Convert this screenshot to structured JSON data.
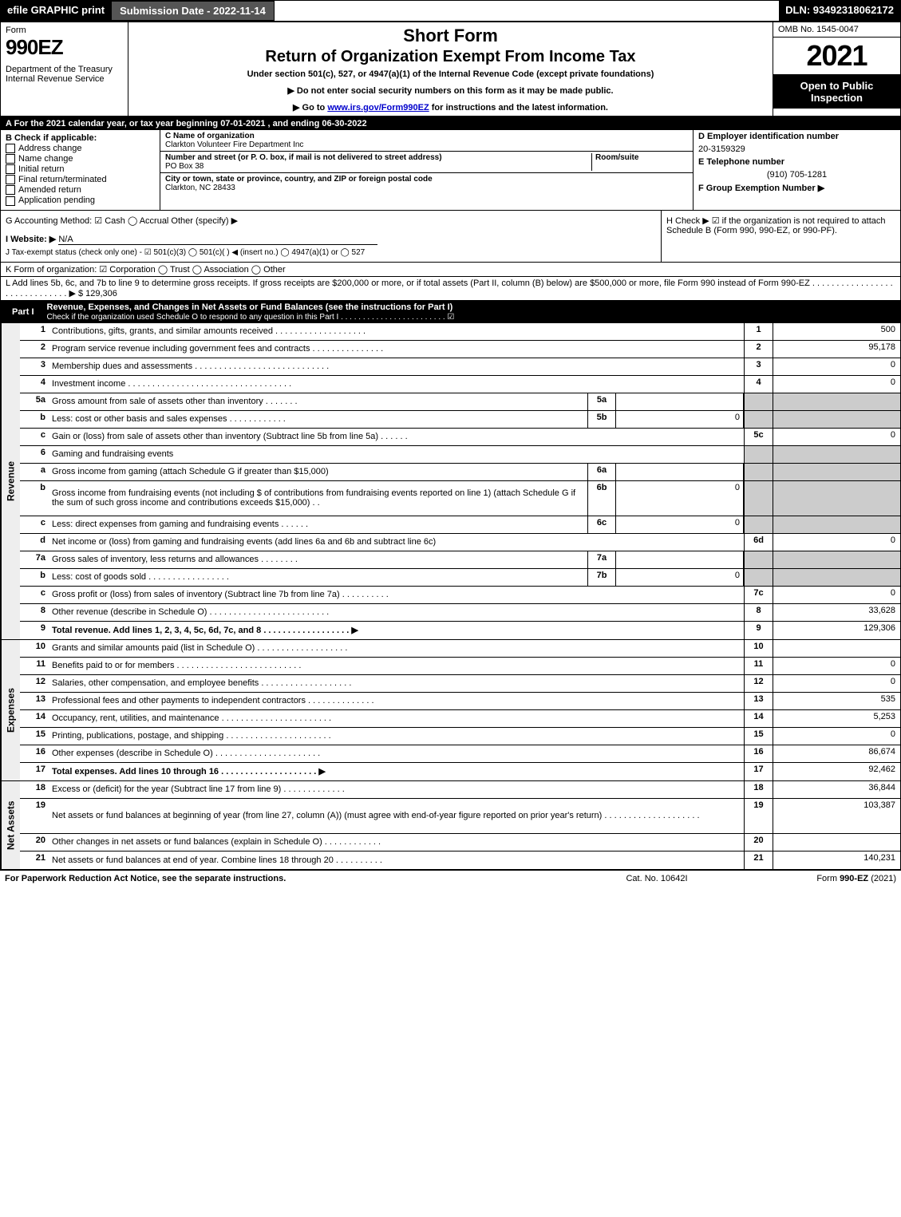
{
  "topbar": {
    "efile": "efile GRAPHIC print",
    "subdate": "Submission Date - 2022-11-14",
    "dln": "DLN: 93492318062172"
  },
  "header": {
    "form_label": "Form",
    "form_no": "990EZ",
    "dept": "Department of the Treasury\nInternal Revenue Service",
    "short": "Short Form",
    "return": "Return of Organization Exempt From Income Tax",
    "under": "Under section 501(c), 527, or 4947(a)(1) of the Internal Revenue Code (except private foundations)",
    "note1": "▶ Do not enter social security numbers on this form as it may be made public.",
    "note2_pre": "▶ Go to ",
    "note2_link": "www.irs.gov/Form990EZ",
    "note2_post": " for instructions and the latest information.",
    "omb": "OMB No. 1545-0047",
    "year": "2021",
    "open": "Open to Public Inspection"
  },
  "row_a": "A  For the 2021 calendar year, or tax year beginning 07-01-2021 , and ending 06-30-2022",
  "section_b": {
    "b_label": "B  Check if applicable:",
    "checks": [
      {
        "label": "Address change",
        "checked": false
      },
      {
        "label": "Name change",
        "checked": false
      },
      {
        "label": "Initial return",
        "checked": false
      },
      {
        "label": "Final return/terminated",
        "checked": false
      },
      {
        "label": "Amended return",
        "checked": false
      },
      {
        "label": "Application pending",
        "checked": false
      }
    ],
    "c_label": "C Name of organization",
    "c_name": "Clarkton Volunteer Fire Department Inc",
    "addr_label": "Number and street (or P. O. box, if mail is not delivered to street address)",
    "addr": "PO Box 38",
    "room_label": "Room/suite",
    "city_label": "City or town, state or province, country, and ZIP or foreign postal code",
    "city": "Clarkton, NC  28433",
    "d_label": "D Employer identification number",
    "d_val": "20-3159329",
    "e_label": "E Telephone number",
    "e_val": "(910) 705-1281",
    "f_label": "F Group Exemption Number  ▶"
  },
  "ghi": {
    "g": "G Accounting Method:   ☑ Cash   ◯ Accrual   Other (specify) ▶",
    "i_label": "I Website: ▶",
    "i_val": "N/A",
    "j": "J Tax-exempt status (check only one) - ☑ 501(c)(3)  ◯ 501(c)(  ) ◀ (insert no.)  ◯ 4947(a)(1) or  ◯ 527",
    "h": "H  Check ▶ ☑ if the organization is not required to attach Schedule B (Form 990, 990-EZ, or 990-PF)."
  },
  "k": "K Form of organization:  ☑ Corporation   ◯ Trust   ◯ Association   ◯ Other",
  "l": {
    "text": "L Add lines 5b, 6c, and 7b to line 9 to determine gross receipts. If gross receipts are $200,000 or more, or if total assets (Part II, column (B) below) are $500,000 or more, file Form 990 instead of Form 990-EZ .  .  .  .  .  .  .  .  .  .  .  .  .  .  .  .  .  .  .  .  .  .  .  .  .  .  .  .  .  .  ▶ $",
    "val": " 129,306"
  },
  "part1": {
    "title": "Part I",
    "heading": "Revenue, Expenses, and Changes in Net Assets or Fund Balances (see the instructions for Part I)",
    "sub": "Check if the organization used Schedule O to respond to any question in this Part I . . . . . . . . . . . . . . . . . . . . . . . . ☑"
  },
  "revenue_label": "Revenue",
  "expenses_label": "Expenses",
  "netassets_label": "Net Assets",
  "revenue_rows": [
    {
      "n": "1",
      "d": "Contributions, gifts, grants, and similar amounts received .  .  .  .  .  .  .  .  .  .  .  .  .  .  .  .  .  .  .",
      "ln": "1",
      "val": "500"
    },
    {
      "n": "2",
      "d": "Program service revenue including government fees and contracts .  .  .  .  .  .  .  .  .  .  .  .  .  .  .",
      "ln": "2",
      "val": "95,178"
    },
    {
      "n": "3",
      "d": "Membership dues and assessments .  .  .  .  .  .  .  .  .  .  .  .  .  .  .  .  .  .  .  .  .  .  .  .  .  .  .  .",
      "ln": "3",
      "val": "0"
    },
    {
      "n": "4",
      "d": "Investment income .  .  .  .  .  .  .  .  .  .  .  .  .  .  .  .  .  .  .  .  .  .  .  .  .  .  .  .  .  .  .  .  .  .",
      "ln": "4",
      "val": "0"
    },
    {
      "n": "5a",
      "d": "Gross amount from sale of assets other than inventory .  .  .  .  .  .  .",
      "subn": "5a",
      "subv": "",
      "ln": "",
      "val": "",
      "lnshade": true,
      "valshade": true
    },
    {
      "n": "b",
      "d": "Less: cost or other basis and sales expenses .  .  .  .  .  .  .  .  .  .  .  .",
      "subn": "5b",
      "subv": "0",
      "ln": "",
      "val": "",
      "lnshade": true,
      "valshade": true
    },
    {
      "n": "c",
      "d": "Gain or (loss) from sale of assets other than inventory (Subtract line 5b from line 5a) .  .  .  .  .  .",
      "ln": "5c",
      "val": "0"
    },
    {
      "n": "6",
      "d": "Gaming and fundraising events",
      "ln": "",
      "val": "",
      "lnshade": true,
      "valshade": true
    },
    {
      "n": "a",
      "d": "Gross income from gaming (attach Schedule G if greater than $15,000)",
      "subn": "6a",
      "subv": "",
      "ln": "",
      "val": "",
      "lnshade": true,
      "valshade": true
    },
    {
      "n": "b",
      "d": "Gross income from fundraising events (not including $                 of contributions from fundraising events reported on line 1) (attach Schedule G if the sum of such gross income and contributions exceeds $15,000)  .  .",
      "subn": "6b",
      "subv": "0",
      "ln": "",
      "val": "",
      "lnshade": true,
      "valshade": true,
      "tall": true
    },
    {
      "n": "c",
      "d": "Less: direct expenses from gaming and fundraising events .  .  .  .  .  .",
      "subn": "6c",
      "subv": "0",
      "ln": "",
      "val": "",
      "lnshade": true,
      "valshade": true
    },
    {
      "n": "d",
      "d": "Net income or (loss) from gaming and fundraising events (add lines 6a and 6b and subtract line 6c)",
      "ln": "6d",
      "val": "0"
    },
    {
      "n": "7a",
      "d": "Gross sales of inventory, less returns and allowances .  .  .  .  .  .  .  .",
      "subn": "7a",
      "subv": "",
      "ln": "",
      "val": "",
      "lnshade": true,
      "valshade": true
    },
    {
      "n": "b",
      "d": "Less: cost of goods sold    .  .  .  .  .  .  .  .  .  .  .  .  .  .  .  .  .",
      "subn": "7b",
      "subv": "0",
      "ln": "",
      "val": "",
      "lnshade": true,
      "valshade": true
    },
    {
      "n": "c",
      "d": "Gross profit or (loss) from sales of inventory (Subtract line 7b from line 7a) .  .  .  .  .  .  .  .  .  .",
      "ln": "7c",
      "val": "0"
    },
    {
      "n": "8",
      "d": "Other revenue (describe in Schedule O) .  .  .  .  .  .  .  .  .  .  .  .  .  .  .  .  .  .  .  .  .  .  .  .  .",
      "ln": "8",
      "val": "33,628"
    },
    {
      "n": "9",
      "d": "Total revenue. Add lines 1, 2, 3, 4, 5c, 6d, 7c, and 8  .  .  .  .  .  .  .  .  .  .  .  .  .  .  .  .  .  .  ▶",
      "ln": "9",
      "val": "129,306",
      "bold": true
    }
  ],
  "expense_rows": [
    {
      "n": "10",
      "d": "Grants and similar amounts paid (list in Schedule O) .  .  .  .  .  .  .  .  .  .  .  .  .  .  .  .  .  .  .",
      "ln": "10",
      "val": ""
    },
    {
      "n": "11",
      "d": "Benefits paid to or for members   .  .  .  .  .  .  .  .  .  .  .  .  .  .  .  .  .  .  .  .  .  .  .  .  .  .",
      "ln": "11",
      "val": "0"
    },
    {
      "n": "12",
      "d": "Salaries, other compensation, and employee benefits .  .  .  .  .  .  .  .  .  .  .  .  .  .  .  .  .  .  .",
      "ln": "12",
      "val": "0"
    },
    {
      "n": "13",
      "d": "Professional fees and other payments to independent contractors .  .  .  .  .  .  .  .  .  .  .  .  .  .",
      "ln": "13",
      "val": "535"
    },
    {
      "n": "14",
      "d": "Occupancy, rent, utilities, and maintenance .  .  .  .  .  .  .  .  .  .  .  .  .  .  .  .  .  .  .  .  .  .  .",
      "ln": "14",
      "val": "5,253"
    },
    {
      "n": "15",
      "d": "Printing, publications, postage, and shipping .  .  .  .  .  .  .  .  .  .  .  .  .  .  .  .  .  .  .  .  .  .",
      "ln": "15",
      "val": "0"
    },
    {
      "n": "16",
      "d": "Other expenses (describe in Schedule O)   .  .  .  .  .  .  .  .  .  .  .  .  .  .  .  .  .  .  .  .  .  .",
      "ln": "16",
      "val": "86,674"
    },
    {
      "n": "17",
      "d": "Total expenses. Add lines 10 through 16   .  .  .  .  .  .  .  .  .  .  .  .  .  .  .  .  .  .  .  .  ▶",
      "ln": "17",
      "val": "92,462",
      "bold": true
    }
  ],
  "net_rows": [
    {
      "n": "18",
      "d": "Excess or (deficit) for the year (Subtract line 17 from line 9)    .  .  .  .  .  .  .  .  .  .  .  .  .",
      "ln": "18",
      "val": "36,844"
    },
    {
      "n": "19",
      "d": "Net assets or fund balances at beginning of year (from line 27, column (A)) (must agree with end-of-year figure reported on prior year's return) .  .  .  .  .  .  .  .  .  .  .  .  .  .  .  .  .  .  .  .",
      "ln": "19",
      "val": "103,387",
      "tall": true
    },
    {
      "n": "20",
      "d": "Other changes in net assets or fund balances (explain in Schedule O) .  .  .  .  .  .  .  .  .  .  .  .",
      "ln": "20",
      "val": ""
    },
    {
      "n": "21",
      "d": "Net assets or fund balances at end of year. Combine lines 18 through 20 .  .  .  .  .  .  .  .  .  .",
      "ln": "21",
      "val": "140,231"
    }
  ],
  "footer": {
    "l": "For Paperwork Reduction Act Notice, see the separate instructions.",
    "m": "Cat. No. 10642I",
    "r_pre": "Form ",
    "r_bold": "990-EZ",
    "r_post": " (2021)"
  }
}
